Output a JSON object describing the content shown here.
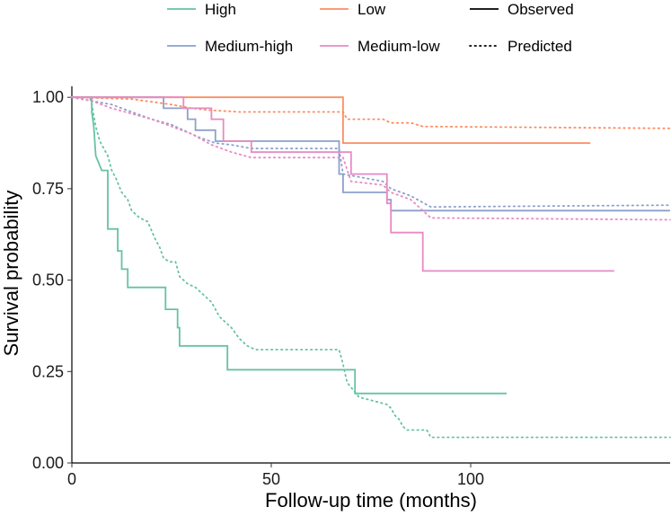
{
  "chart_data": {
    "type": "line",
    "subtype": "kaplan-meier step curves",
    "xlabel": "Follow-up time (months)",
    "ylabel": "Survival probability",
    "xlim": [
      0,
      150
    ],
    "ylim": [
      0,
      1.03
    ],
    "xticks": [
      0,
      50,
      100
    ],
    "xtick_labels": [
      "0",
      "50",
      "100"
    ],
    "yticks": [
      0,
      0.25,
      0.5,
      0.75,
      1.0
    ],
    "ytick_labels": [
      "0.00",
      "0.25",
      "0.50",
      "0.75",
      "1.00"
    ],
    "grid": false,
    "legend_position": "top",
    "legend": {
      "groups": [
        {
          "name": "High",
          "color": "#66c2a5"
        },
        {
          "name": "Low",
          "color": "#fc8d62"
        },
        {
          "name": "Medium-high",
          "color": "#8da0cb"
        },
        {
          "name": "Medium-low",
          "color": "#e78ac3"
        }
      ],
      "linetypes": [
        {
          "name": "Observed",
          "style": "solid"
        },
        {
          "name": "Predicted",
          "style": "dotted"
        }
      ]
    },
    "series": [
      {
        "name": "High",
        "type": "Observed",
        "color": "#66c2a5",
        "style": "solid",
        "points": [
          [
            0,
            1.0
          ],
          [
            5,
            1.0
          ],
          [
            5,
            0.96
          ],
          [
            5.5,
            0.92
          ],
          [
            6,
            0.84
          ],
          [
            7.5,
            0.8
          ],
          [
            9,
            0.8
          ],
          [
            9,
            0.64
          ],
          [
            11.5,
            0.64
          ],
          [
            11.5,
            0.58
          ],
          [
            12.5,
            0.58
          ],
          [
            12.5,
            0.53
          ],
          [
            14,
            0.53
          ],
          [
            14,
            0.48
          ],
          [
            20,
            0.48
          ],
          [
            20,
            0.48
          ],
          [
            23.5,
            0.48
          ],
          [
            23.5,
            0.42
          ],
          [
            26.5,
            0.42
          ],
          [
            26.5,
            0.37
          ],
          [
            27,
            0.37
          ],
          [
            27,
            0.32
          ],
          [
            39,
            0.32
          ],
          [
            39,
            0.255
          ],
          [
            71,
            0.255
          ],
          [
            71,
            0.19
          ],
          [
            109,
            0.19
          ]
        ]
      },
      {
        "name": "High",
        "type": "Predicted",
        "color": "#66c2a5",
        "style": "dotted",
        "points": [
          [
            0,
            1.0
          ],
          [
            4.5,
            1.0
          ],
          [
            5,
            0.98
          ],
          [
            6,
            0.92
          ],
          [
            7,
            0.88
          ],
          [
            9,
            0.84
          ],
          [
            10,
            0.8
          ],
          [
            11,
            0.78
          ],
          [
            12.5,
            0.74
          ],
          [
            14,
            0.72
          ],
          [
            15,
            0.69
          ],
          [
            17,
            0.67
          ],
          [
            19,
            0.66
          ],
          [
            21,
            0.61
          ],
          [
            22,
            0.59
          ],
          [
            23,
            0.56
          ],
          [
            24.5,
            0.55
          ],
          [
            26,
            0.55
          ],
          [
            27,
            0.51
          ],
          [
            29,
            0.49
          ],
          [
            31,
            0.48
          ],
          [
            33,
            0.46
          ],
          [
            35,
            0.44
          ],
          [
            37,
            0.4
          ],
          [
            40,
            0.37
          ],
          [
            42,
            0.34
          ],
          [
            44,
            0.32
          ],
          [
            46,
            0.31
          ],
          [
            60,
            0.31
          ],
          [
            67,
            0.31
          ],
          [
            68,
            0.27
          ],
          [
            69,
            0.22
          ],
          [
            72,
            0.18
          ],
          [
            79,
            0.16
          ],
          [
            80,
            0.15
          ],
          [
            81,
            0.13
          ],
          [
            82,
            0.12
          ],
          [
            83,
            0.1
          ],
          [
            84,
            0.09
          ],
          [
            89,
            0.09
          ],
          [
            90,
            0.07
          ],
          [
            150,
            0.07
          ]
        ]
      },
      {
        "name": "Low",
        "type": "Observed",
        "color": "#fc8d62",
        "style": "solid",
        "points": [
          [
            0,
            1.0
          ],
          [
            68,
            1.0
          ],
          [
            68,
            0.875
          ],
          [
            130,
            0.875
          ]
        ]
      },
      {
        "name": "Low",
        "type": "Predicted",
        "color": "#fc8d62",
        "style": "dotted",
        "points": [
          [
            0,
            1.0
          ],
          [
            15,
            0.995
          ],
          [
            25,
            0.98
          ],
          [
            30,
            0.97
          ],
          [
            34,
            0.965
          ],
          [
            42,
            0.96
          ],
          [
            68,
            0.96
          ],
          [
            69,
            0.94
          ],
          [
            78,
            0.94
          ],
          [
            80,
            0.93
          ],
          [
            85,
            0.93
          ],
          [
            88,
            0.92
          ],
          [
            150,
            0.915
          ]
        ]
      },
      {
        "name": "Medium-high",
        "type": "Observed",
        "color": "#8da0cb",
        "style": "solid",
        "points": [
          [
            0,
            1.0
          ],
          [
            23,
            1.0
          ],
          [
            23,
            0.97
          ],
          [
            29,
            0.97
          ],
          [
            29,
            0.94
          ],
          [
            31,
            0.94
          ],
          [
            31,
            0.91
          ],
          [
            36,
            0.91
          ],
          [
            36,
            0.88
          ],
          [
            67,
            0.88
          ],
          [
            67,
            0.79
          ],
          [
            68,
            0.79
          ],
          [
            68,
            0.74
          ],
          [
            79,
            0.74
          ],
          [
            79,
            0.72
          ],
          [
            80,
            0.72
          ],
          [
            80,
            0.69
          ],
          [
            150,
            0.69
          ]
        ]
      },
      {
        "name": "Medium-high",
        "type": "Predicted",
        "color": "#8da0cb",
        "style": "dotted",
        "points": [
          [
            0,
            1.0
          ],
          [
            5,
            0.99
          ],
          [
            10,
            0.98
          ],
          [
            15,
            0.96
          ],
          [
            20,
            0.94
          ],
          [
            25,
            0.925
          ],
          [
            28,
            0.91
          ],
          [
            32,
            0.89
          ],
          [
            36,
            0.875
          ],
          [
            40,
            0.87
          ],
          [
            45,
            0.86
          ],
          [
            67,
            0.86
          ],
          [
            68,
            0.79
          ],
          [
            78,
            0.77
          ],
          [
            80,
            0.75
          ],
          [
            85,
            0.73
          ],
          [
            90,
            0.7
          ],
          [
            150,
            0.705
          ]
        ]
      },
      {
        "name": "Medium-low",
        "type": "Observed",
        "color": "#e78ac3",
        "style": "solid",
        "points": [
          [
            0,
            1.0
          ],
          [
            28,
            1.0
          ],
          [
            28,
            0.97
          ],
          [
            35,
            0.97
          ],
          [
            35,
            0.94
          ],
          [
            38,
            0.94
          ],
          [
            38,
            0.88
          ],
          [
            45,
            0.88
          ],
          [
            45,
            0.85
          ],
          [
            70,
            0.85
          ],
          [
            70,
            0.79
          ],
          [
            79,
            0.79
          ],
          [
            79,
            0.71
          ],
          [
            80,
            0.71
          ],
          [
            80,
            0.63
          ],
          [
            88,
            0.63
          ],
          [
            88,
            0.525
          ],
          [
            136,
            0.525
          ]
        ]
      },
      {
        "name": "Medium-low",
        "type": "Predicted",
        "color": "#e78ac3",
        "style": "dotted",
        "points": [
          [
            0,
            1.0
          ],
          [
            5,
            0.99
          ],
          [
            10,
            0.97
          ],
          [
            15,
            0.955
          ],
          [
            20,
            0.94
          ],
          [
            25,
            0.92
          ],
          [
            30,
            0.9
          ],
          [
            35,
            0.87
          ],
          [
            40,
            0.85
          ],
          [
            45,
            0.835
          ],
          [
            68,
            0.835
          ],
          [
            70,
            0.77
          ],
          [
            78,
            0.76
          ],
          [
            80,
            0.74
          ],
          [
            85,
            0.72
          ],
          [
            90,
            0.67
          ],
          [
            150,
            0.665
          ]
        ]
      }
    ]
  }
}
